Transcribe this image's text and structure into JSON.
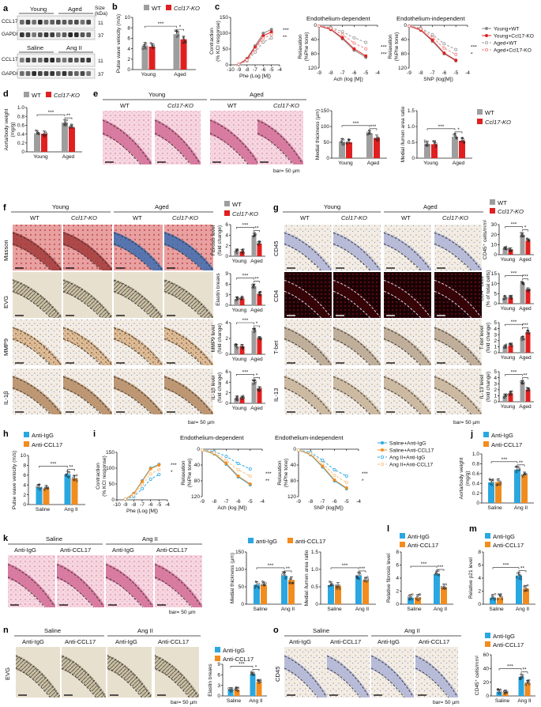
{
  "colors": {
    "wt": "#9e9e9e",
    "ko": "#e02020",
    "igg": "#2aa7e0",
    "ccl17": "#f28c1e",
    "ko_alt": "#f08080",
    "ccl17_alt": "#f6bf80",
    "he": "#f2c4d2",
    "ihc": "#efe7de",
    "masson_red": "#c8494a",
    "masson_blue": "#3d6db2",
    "if_bg": "#1a0306",
    "if_red": "#e02020"
  },
  "labels": {
    "a": "a",
    "b": "b",
    "c": "c",
    "d": "d",
    "e": "e",
    "f": "f",
    "g": "g",
    "h": "h",
    "i": "i",
    "j": "j",
    "k": "k",
    "l": "l",
    "m": "m",
    "n": "n",
    "o": "o",
    "young": "Young",
    "aged": "Aged",
    "saline": "Saline",
    "angii": "Ang II",
    "wt": "WT",
    "ko": "Ccl17-KO",
    "ko_italic": "Ccl17",
    "ko_suffix": "-KO",
    "igg": "Anti-IgG",
    "ccl17": "Anti-CCL17",
    "igg_lower": "anti-IgG",
    "ccl17_lower": "anti-CCL17",
    "size_kda": "Size\n(kDa)",
    "ccl17_band": "CCL17",
    "gapdh_band": "GAPDH",
    "kda_11": "11",
    "kda_37": "37",
    "bar50": "bar= 50 µm",
    "masson": "Masson",
    "evg": "EVG",
    "mmp9": "MMP9",
    "il1b": "IL-1β",
    "cd45": "CD45",
    "cd4": "CD4",
    "tbet": "T-bet",
    "il13": "IL-13",
    "endo_dep": "Endothelium-dependent",
    "endo_indep": "Endothelium-independent",
    "leg_ywt": "Young+WT",
    "leg_yko": "Young+Ccl17-KO",
    "leg_awt": "Aged+WT",
    "leg_ako": "Aged+Ccl17-KO",
    "leg_sigg": "Saline+Anti-IgG",
    "leg_sccl": "Saline+Anti-CCL17",
    "leg_aigg": "Ang II+Anti-IgG",
    "leg_accl": "Ang II+Anti-CCL17",
    "sig3": "***",
    "sig2": "**",
    "sig1": "*"
  },
  "axes": {
    "pwv": "Pulse wave velocity (m/s)",
    "contraction": "Contraction\n(% KCl response)",
    "relax_phe": "Relaxation\n(%Phe tone)",
    "phe": "Phe (Log [M])",
    "ach": "Ach (log [M])",
    "snp": "SNP (log[M])",
    "ratio": "Aorta/body weight\n(mg/g)",
    "medial": "Medial thickness (µm)",
    "medial_lumen": "Medial /lumen area ratio",
    "fibrosis": "Fibrosis level\n(fold change)",
    "elastin": "Elastin breaks",
    "mmp9": "MMP9 level\n(fold change)",
    "il1b": "IL-1β level\n(fold change)",
    "cd45": "CD45⁺ cells/mm²",
    "cd4": "CD4⁺ cells\n(% of total cells)",
    "tbet": "T-bet level\n(fold change)",
    "il13": "IL-13 level\n(fold change)",
    "rel_fibrosis": "Relative fibrosis level",
    "rel_p21": "Relative p21 level"
  },
  "ticks": {
    "b": [
      "0",
      "2",
      "4",
      "6",
      "8",
      "10"
    ],
    "c_y": [
      "150",
      "100",
      "50",
      "0"
    ],
    "c_relax": [
      "0",
      "40",
      "80",
      "120"
    ],
    "c_phe": [
      "-10",
      "-9",
      "-8",
      "-7",
      "-6",
      "-5",
      "-4"
    ],
    "c_ach": [
      "-9",
      "-8",
      "-7",
      "-6",
      "-5",
      "-4"
    ],
    "d": [
      "0",
      "0.2",
      "0.4",
      "0.6",
      "0.8",
      "1.0"
    ],
    "e_medial": [
      "0",
      "50",
      "100",
      "150"
    ],
    "e_ratio": [
      "0",
      "0.5",
      "1.0",
      "1.5"
    ],
    "j": [
      "0",
      "0.2",
      "0.4",
      "0.6",
      "0.8",
      "1.0"
    ],
    "k_medial": [
      "0",
      "50",
      "100",
      "150"
    ],
    "k_ratio": [
      "0",
      "0.5",
      "1.0",
      "1.5"
    ],
    "l": [
      "0",
      "2",
      "4",
      "6",
      "8"
    ],
    "m": [
      "0",
      "2",
      "4",
      "6",
      "8"
    ],
    "n": [
      "0",
      "3",
      "6",
      "9"
    ],
    "o": [
      "0",
      "20",
      "40",
      "60"
    ],
    "h": [
      "0",
      "2",
      "4",
      "6",
      "8",
      "10"
    ]
  },
  "chart_data": [
    {
      "id": "b",
      "type": "bar",
      "categories": [
        "Young",
        "Aged"
      ],
      "series": [
        {
          "name": "WT",
          "values": [
            4.6,
            6.8
          ]
        },
        {
          "name": "Ccl17-KO",
          "values": [
            4.4,
            5.8
          ]
        }
      ],
      "ylabel": "Pulse wave velocity (m/s)",
      "ylim": [
        0,
        10
      ]
    },
    {
      "id": "d",
      "type": "bar",
      "categories": [
        "Young",
        "Aged"
      ],
      "series": [
        {
          "name": "WT",
          "values": [
            0.42,
            0.66
          ]
        },
        {
          "name": "Ccl17-KO",
          "values": [
            0.41,
            0.55
          ]
        }
      ],
      "ylabel": "Aorta/body weight (mg/g)",
      "ylim": [
        0,
        1.0
      ]
    },
    {
      "id": "e1",
      "type": "bar",
      "categories": [
        "Young",
        "Aged"
      ],
      "series": [
        {
          "name": "WT",
          "values": [
            52,
            78
          ]
        },
        {
          "name": "Ccl17-KO",
          "values": [
            50,
            64
          ]
        }
      ],
      "ylabel": "Medial thickness (µm)",
      "ylim": [
        0,
        150
      ]
    },
    {
      "id": "e2",
      "type": "bar",
      "categories": [
        "Young",
        "Aged"
      ],
      "series": [
        {
          "name": "WT",
          "values": [
            0.45,
            0.68
          ]
        },
        {
          "name": "Ccl17-KO",
          "values": [
            0.44,
            0.55
          ]
        }
      ],
      "ylabel": "Medial /lumen area ratio",
      "ylim": [
        0,
        1.5
      ]
    },
    {
      "id": "f1",
      "type": "bar",
      "categories": [
        "Young",
        "Aged"
      ],
      "series": [
        {
          "name": "WT",
          "values": [
            1.0,
            4.0
          ]
        },
        {
          "name": "Ccl17-KO",
          "values": [
            0.9,
            2.4
          ]
        }
      ],
      "ylabel": "Fibrosis level (fold change)",
      "ylim": [
        0,
        6
      ]
    },
    {
      "id": "f2",
      "type": "bar",
      "categories": [
        "Young",
        "Aged"
      ],
      "series": [
        {
          "name": "WT",
          "values": [
            1.8,
            5.5
          ]
        },
        {
          "name": "Ccl17-KO",
          "values": [
            1.9,
            3.2
          ]
        }
      ],
      "ylabel": "Elastin breaks",
      "ylim": [
        0,
        9
      ]
    },
    {
      "id": "f3",
      "type": "bar",
      "categories": [
        "Young",
        "Aged"
      ],
      "series": [
        {
          "name": "WT",
          "values": [
            1.0,
            3.0
          ]
        },
        {
          "name": "Ccl17-KO",
          "values": [
            1.0,
            2.0
          ]
        }
      ],
      "ylabel": "MMP9 level (fold change)",
      "ylim": [
        0,
        4
      ]
    },
    {
      "id": "f4",
      "type": "bar",
      "categories": [
        "Young",
        "Aged"
      ],
      "series": [
        {
          "name": "WT",
          "values": [
            1.0,
            4.0
          ]
        },
        {
          "name": "Ccl17-KO",
          "values": [
            1.0,
            2.8
          ]
        }
      ],
      "ylabel": "IL-1β level (fold change)",
      "ylim": [
        0,
        6
      ]
    },
    {
      "id": "g1",
      "type": "bar",
      "categories": [
        "Young",
        "Aged"
      ],
      "series": [
        {
          "name": "WT",
          "values": [
            6,
            20
          ]
        },
        {
          "name": "Ccl17-KO",
          "values": [
            5,
            14
          ]
        }
      ],
      "ylabel": "CD45⁺ cells/mm²",
      "ylim": [
        0,
        30
      ]
    },
    {
      "id": "g2",
      "type": "bar",
      "categories": [
        "Young",
        "Aged"
      ],
      "series": [
        {
          "name": "WT",
          "values": [
            3,
            10
          ]
        },
        {
          "name": "Ccl17-KO",
          "values": [
            3,
            7
          ]
        }
      ],
      "ylabel": "CD4⁺ cells (% of total cells)",
      "ylim": [
        0,
        15
      ]
    },
    {
      "id": "g3",
      "type": "bar",
      "categories": [
        "Young",
        "Aged"
      ],
      "series": [
        {
          "name": "WT",
          "values": [
            1.0,
            2.4
          ]
        },
        {
          "name": "Ccl17-KO",
          "values": [
            1.2,
            3.4
          ]
        }
      ],
      "ylabel": "T-bet level (fold change)",
      "ylim": [
        0,
        5
      ]
    },
    {
      "id": "g4",
      "type": "bar",
      "categories": [
        "Young",
        "Aged"
      ],
      "series": [
        {
          "name": "WT",
          "values": [
            1.0,
            3.2
          ]
        },
        {
          "name": "Ccl17-KO",
          "values": [
            1.4,
            2.0
          ]
        }
      ],
      "ylabel": "IL-13 level (fold change)",
      "ylim": [
        0,
        5
      ]
    },
    {
      "id": "h",
      "type": "bar",
      "categories": [
        "Saline",
        "Ang II"
      ],
      "series": [
        {
          "name": "Anti-IgG",
          "values": [
            3.5,
            6.2
          ]
        },
        {
          "name": "Anti-CCL17",
          "values": [
            3.3,
            5.3
          ]
        }
      ],
      "ylabel": "Pulse wave velocity (m/s)",
      "ylim": [
        0,
        10
      ]
    },
    {
      "id": "j",
      "type": "bar",
      "categories": [
        "Saline",
        "Ang II"
      ],
      "series": [
        {
          "name": "Anti-IgG",
          "values": [
            0.42,
            0.68
          ]
        },
        {
          "name": "Anti-CCL17",
          "values": [
            0.43,
            0.57
          ]
        }
      ],
      "ylabel": "Aorta/body weight (mg/g)",
      "ylim": [
        0,
        1.0
      ]
    },
    {
      "id": "k1",
      "type": "bar",
      "categories": [
        "Saline",
        "Ang II"
      ],
      "series": [
        {
          "name": "anti-IgG",
          "values": [
            56,
            82
          ]
        },
        {
          "name": "anti-CCL17",
          "values": [
            55,
            70
          ]
        }
      ],
      "ylabel": "Medial thickness (µm)",
      "ylim": [
        0,
        150
      ]
    },
    {
      "id": "k2",
      "type": "bar",
      "categories": [
        "Saline",
        "Ang II"
      ],
      "series": [
        {
          "name": "anti-IgG",
          "values": [
            0.55,
            0.82
          ]
        },
        {
          "name": "anti-CCL17",
          "values": [
            0.53,
            0.68
          ]
        }
      ],
      "ylabel": "Medial /lumen area ratio",
      "ylim": [
        0,
        1.5
      ]
    },
    {
      "id": "l",
      "type": "bar",
      "categories": [
        "Saline",
        "Ang II"
      ],
      "series": [
        {
          "name": "Anti-IgG",
          "values": [
            1.0,
            4.6
          ]
        },
        {
          "name": "Anti-CCL17",
          "values": [
            1.0,
            2.6
          ]
        }
      ],
      "ylabel": "Relative fibrosis level",
      "ylim": [
        0,
        8
      ]
    },
    {
      "id": "m",
      "type": "bar",
      "categories": [
        "Saline",
        "Ang II"
      ],
      "series": [
        {
          "name": "Anti-IgG",
          "values": [
            1.0,
            4.4
          ]
        },
        {
          "name": "Anti-CCL17",
          "values": [
            1.0,
            2.4
          ]
        }
      ],
      "ylabel": "Relative p21 level",
      "ylim": [
        0,
        8
      ]
    },
    {
      "id": "n",
      "type": "bar",
      "categories": [
        "Saline",
        "Ang II"
      ],
      "series": [
        {
          "name": "Anti-IgG",
          "values": [
            1.8,
            6.2
          ]
        },
        {
          "name": "Anti-CCL17",
          "values": [
            1.8,
            4.0
          ]
        }
      ],
      "ylabel": "Elastin breaks",
      "ylim": [
        0,
        9
      ]
    },
    {
      "id": "o",
      "type": "bar",
      "categories": [
        "Saline",
        "Ang II"
      ],
      "series": [
        {
          "name": "Anti-IgG",
          "values": [
            6,
            28
          ]
        },
        {
          "name": "Anti-CCL17",
          "values": [
            5,
            19
          ]
        }
      ],
      "ylabel": "CD45⁺ cells/mm²",
      "ylim": [
        0,
        60
      ]
    },
    {
      "id": "c1",
      "type": "line",
      "x": [
        -9,
        -8,
        -7,
        -6,
        -5
      ],
      "series": [
        {
          "name": "Young+WT",
          "values": [
            2,
            20,
            60,
            100,
            112
          ]
        },
        {
          "name": "Young+Ccl17-KO",
          "values": [
            2,
            18,
            55,
            92,
            104
          ]
        },
        {
          "name": "Aged+WT",
          "values": [
            2,
            12,
            40,
            72,
            85
          ]
        },
        {
          "name": "Aged+Ccl17-KO",
          "values": [
            2,
            15,
            48,
            84,
            96
          ]
        }
      ],
      "ylabel": "Contraction (% KCl response)",
      "xlabel": "Phe (Log [M])",
      "ylim": [
        0,
        150
      ]
    },
    {
      "id": "c2",
      "type": "line",
      "x": [
        -9,
        -8,
        -7,
        -6,
        -5
      ],
      "series": [
        {
          "name": "Young+WT",
          "values": [
            2,
            12,
            38,
            70,
            90
          ]
        },
        {
          "name": "Young+Ccl17-KO",
          "values": [
            2,
            11,
            35,
            66,
            86
          ]
        },
        {
          "name": "Aged+WT",
          "values": [
            2,
            6,
            18,
            35,
            48
          ]
        },
        {
          "name": "Aged+Ccl17-KO",
          "values": [
            2,
            8,
            26,
            50,
            66
          ]
        }
      ],
      "ylabel": "Relaxation (%Phe tone)",
      "xlabel": "Ach (log [M])",
      "ylim": [
        0,
        120
      ]
    },
    {
      "id": "c3",
      "type": "line",
      "x": [
        -9,
        -8,
        -7,
        -6,
        -5
      ],
      "series": [
        {
          "name": "Young+WT",
          "values": [
            2,
            14,
            45,
            80,
            100
          ]
        },
        {
          "name": "Young+Ccl17-KO",
          "values": [
            2,
            13,
            42,
            78,
            98
          ]
        },
        {
          "name": "Aged+WT",
          "values": [
            2,
            8,
            26,
            52,
            68
          ]
        },
        {
          "name": "Aged+Ccl17-KO",
          "values": [
            2,
            10,
            34,
            64,
            82
          ]
        }
      ],
      "ylabel": "Relaxation (%Phe tone)",
      "xlabel": "SNP (log[M])",
      "ylim": [
        0,
        120
      ]
    },
    {
      "id": "i1",
      "type": "line",
      "x": [
        -9,
        -8,
        -7,
        -6,
        -5
      ],
      "series": [
        {
          "name": "Saline+Anti-IgG",
          "values": [
            2,
            20,
            60,
            100,
            112
          ]
        },
        {
          "name": "Saline+Anti-CCL17",
          "values": [
            2,
            19,
            58,
            98,
            110
          ]
        },
        {
          "name": "Ang II+Anti-IgG",
          "values": [
            2,
            10,
            35,
            65,
            80
          ]
        },
        {
          "name": "Ang II+Anti-CCL17",
          "values": [
            2,
            15,
            48,
            82,
            96
          ]
        }
      ],
      "ylabel": "Contraction (% KCl response)",
      "xlabel": "Phe (Log [M])",
      "ylim": [
        0,
        150
      ]
    },
    {
      "id": "i2",
      "type": "line",
      "x": [
        -9,
        -8,
        -7,
        -6,
        -5
      ],
      "series": [
        {
          "name": "Saline+Anti-IgG",
          "values": [
            2,
            12,
            38,
            70,
            90
          ]
        },
        {
          "name": "Saline+Anti-CCL17",
          "values": [
            2,
            11,
            36,
            68,
            88
          ]
        },
        {
          "name": "Ang II+Anti-IgG",
          "values": [
            2,
            6,
            18,
            36,
            50
          ]
        },
        {
          "name": "Ang II+Anti-CCL17",
          "values": [
            2,
            9,
            28,
            52,
            68
          ]
        }
      ],
      "ylabel": "Relaxation (%Phe tone)",
      "xlabel": "Ach (log [M])",
      "ylim": [
        0,
        120
      ]
    },
    {
      "id": "i3",
      "type": "line",
      "x": [
        -9,
        -8,
        -7,
        -6,
        -5
      ],
      "series": [
        {
          "name": "Saline+Anti-IgG",
          "values": [
            2,
            14,
            45,
            80,
            100
          ]
        },
        {
          "name": "Saline+Anti-CCL17",
          "values": [
            2,
            13,
            43,
            78,
            98
          ]
        },
        {
          "name": "Ang II+Anti-IgG",
          "values": [
            2,
            8,
            28,
            52,
            68
          ]
        },
        {
          "name": "Ang II+Anti-CCL17",
          "values": [
            2,
            11,
            36,
            66,
            84
          ]
        }
      ],
      "ylabel": "Relaxation (%Phe tone)",
      "xlabel": "SNP (log[M])",
      "ylim": [
        0,
        120
      ]
    }
  ]
}
